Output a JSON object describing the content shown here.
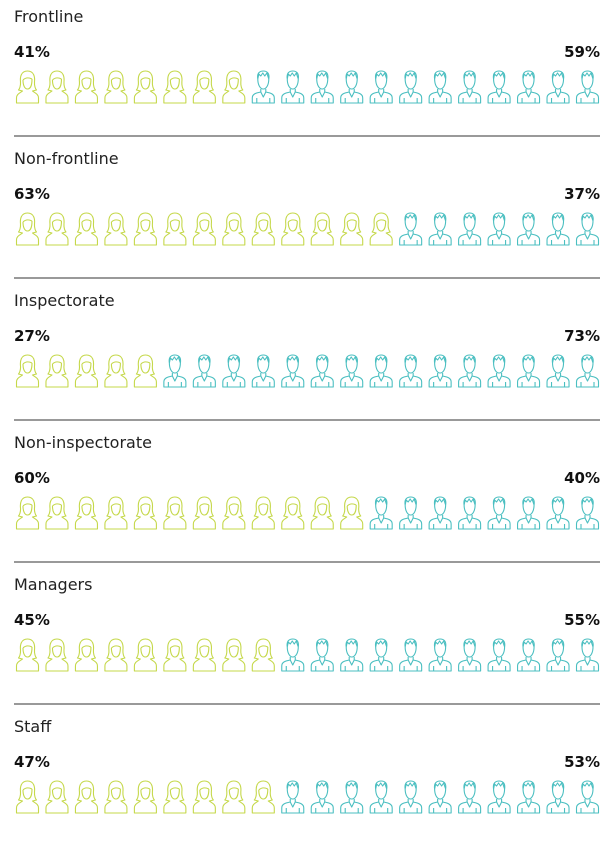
{
  "chart_data": {
    "type": "pictogram",
    "categories": [
      "Frontline",
      "Non-frontline",
      "Inspectorate",
      "Non-inspectorate",
      "Managers",
      "Staff"
    ],
    "series": [
      {
        "color": "#c5d84a",
        "values": [
          41,
          63,
          27,
          60,
          45,
          47
        ],
        "value_labels": [
          "41%",
          "63%",
          "27%",
          "60%",
          "45%",
          "47%"
        ]
      },
      {
        "color": "#4bbfc1",
        "values": [
          59,
          37,
          73,
          40,
          55,
          53
        ],
        "value_labels": [
          "59%",
          "37%",
          "73%",
          "40%",
          "55%",
          "53%"
        ]
      }
    ]
  }
}
